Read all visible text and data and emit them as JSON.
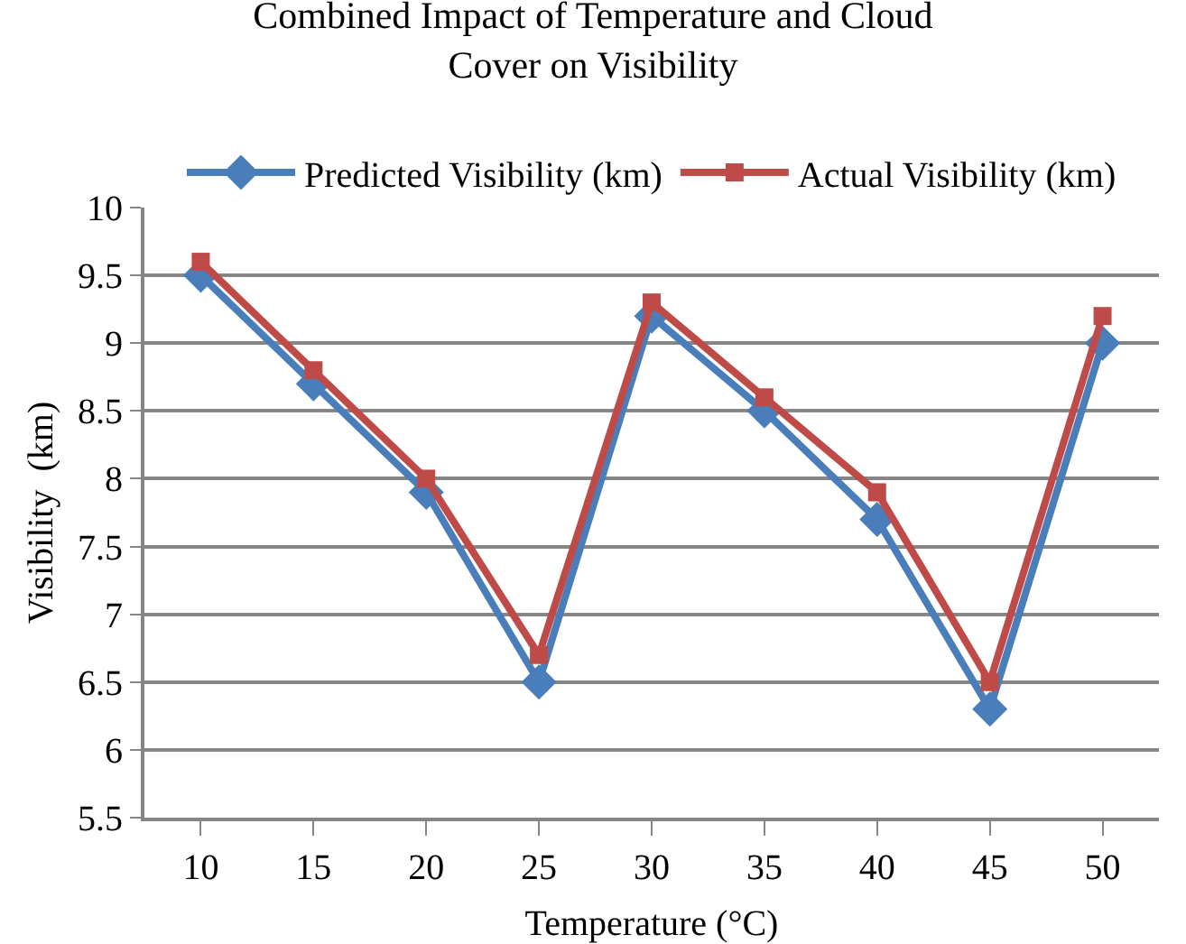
{
  "chart_data": {
    "type": "line",
    "title": "Combined Impact of Temperature and Cloud Cover on Visibility",
    "xlabel": "Temperature (°C)",
    "ylabel": "Visibility  (km)",
    "categories": [
      "10",
      "15",
      "20",
      "25",
      "30",
      "35",
      "40",
      "45",
      "50"
    ],
    "series": [
      {
        "name": "Predicted Visibility (km)",
        "color": "#4a7ebb",
        "marker": "diamond",
        "values": [
          9.5,
          8.7,
          7.9,
          6.5,
          9.2,
          8.5,
          7.7,
          6.3,
          9.0
        ]
      },
      {
        "name": "Actual Visibility (km)",
        "color": "#be4b48",
        "marker": "square",
        "values": [
          9.6,
          8.8,
          8.0,
          6.7,
          9.3,
          8.6,
          7.9,
          6.5,
          9.2
        ]
      }
    ],
    "ylim": [
      5.5,
      10
    ],
    "yticks": [
      5.5,
      6,
      6.5,
      7,
      7.5,
      8,
      8.5,
      9,
      9.5,
      10
    ],
    "grid": "y",
    "legend": "top",
    "line_style": "solid"
  }
}
